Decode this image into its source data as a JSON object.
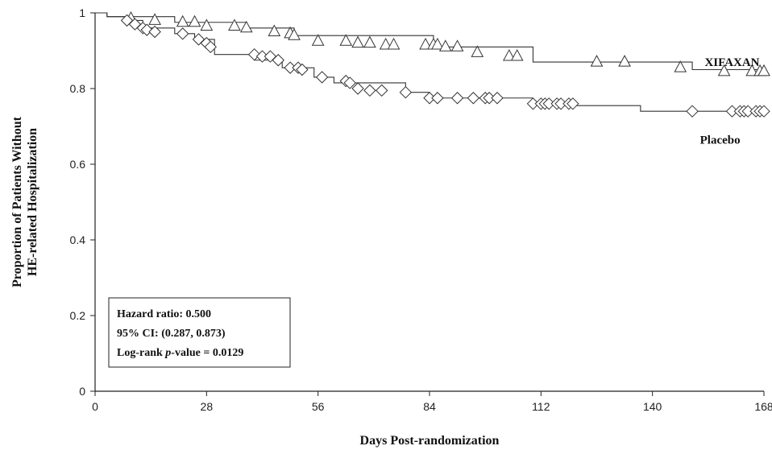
{
  "chart_data": {
    "type": "line",
    "subtype": "kaplan-meier-step",
    "xlabel": "Days Post-randomization",
    "ylabel_lines": [
      "Proportion of Patients Without",
      "HE-related Hospitalization"
    ],
    "xlim": [
      0,
      168
    ],
    "ylim": [
      0,
      1
    ],
    "xticks": [
      0,
      28,
      56,
      84,
      112,
      140,
      168
    ],
    "yticks": [
      0,
      0.2,
      0.4,
      0.6,
      0.8,
      1
    ],
    "ytick_labels": [
      "0",
      "0.2",
      "0.4",
      "0.6",
      "0.8",
      "1"
    ],
    "grid": false,
    "series": [
      {
        "name": "XIFAXAN",
        "color": "#333333",
        "marker": "triangle",
        "step_x": [
          0,
          3,
          20,
          38,
          50,
          85,
          110,
          150,
          168
        ],
        "step_y": [
          1.0,
          0.99,
          0.975,
          0.96,
          0.94,
          0.91,
          0.87,
          0.85,
          0.845
        ],
        "censored": [
          {
            "x": 9,
            "y": 0.985
          },
          {
            "x": 15,
            "y": 0.98
          },
          {
            "x": 22,
            "y": 0.975
          },
          {
            "x": 25,
            "y": 0.975
          },
          {
            "x": 28,
            "y": 0.965
          },
          {
            "x": 35,
            "y": 0.965
          },
          {
            "x": 38,
            "y": 0.96
          },
          {
            "x": 45,
            "y": 0.95
          },
          {
            "x": 49,
            "y": 0.945
          },
          {
            "x": 50,
            "y": 0.94
          },
          {
            "x": 56,
            "y": 0.925
          },
          {
            "x": 63,
            "y": 0.925
          },
          {
            "x": 66,
            "y": 0.92
          },
          {
            "x": 69,
            "y": 0.92
          },
          {
            "x": 73,
            "y": 0.915
          },
          {
            "x": 75,
            "y": 0.915
          },
          {
            "x": 83,
            "y": 0.915
          },
          {
            "x": 85,
            "y": 0.915
          },
          {
            "x": 86,
            "y": 0.915
          },
          {
            "x": 88,
            "y": 0.91
          },
          {
            "x": 91,
            "y": 0.91
          },
          {
            "x": 96,
            "y": 0.895
          },
          {
            "x": 104,
            "y": 0.885
          },
          {
            "x": 106,
            "y": 0.885
          },
          {
            "x": 126,
            "y": 0.87
          },
          {
            "x": 133,
            "y": 0.87
          },
          {
            "x": 147,
            "y": 0.855
          },
          {
            "x": 158,
            "y": 0.845
          },
          {
            "x": 165,
            "y": 0.845
          },
          {
            "x": 167,
            "y": 0.845
          },
          {
            "x": 168,
            "y": 0.845
          }
        ]
      },
      {
        "name": "Placebo",
        "color": "#333333",
        "marker": "diamond",
        "step_x": [
          0,
          3,
          8,
          12,
          20,
          25,
          30,
          40,
          47,
          55,
          60,
          78,
          84,
          102,
          110,
          120,
          137,
          168
        ],
        "step_y": [
          1.0,
          0.99,
          0.98,
          0.96,
          0.945,
          0.93,
          0.89,
          0.875,
          0.855,
          0.83,
          0.815,
          0.79,
          0.775,
          0.775,
          0.76,
          0.755,
          0.74,
          0.735
        ],
        "censored": [
          {
            "x": 8,
            "y": 0.98
          },
          {
            "x": 10,
            "y": 0.97
          },
          {
            "x": 12,
            "y": 0.96
          },
          {
            "x": 13,
            "y": 0.955
          },
          {
            "x": 15,
            "y": 0.95
          },
          {
            "x": 22,
            "y": 0.945
          },
          {
            "x": 26,
            "y": 0.93
          },
          {
            "x": 28,
            "y": 0.92
          },
          {
            "x": 29,
            "y": 0.91
          },
          {
            "x": 40,
            "y": 0.89
          },
          {
            "x": 42,
            "y": 0.885
          },
          {
            "x": 44,
            "y": 0.885
          },
          {
            "x": 46,
            "y": 0.875
          },
          {
            "x": 49,
            "y": 0.855
          },
          {
            "x": 51,
            "y": 0.855
          },
          {
            "x": 52,
            "y": 0.85
          },
          {
            "x": 57,
            "y": 0.83
          },
          {
            "x": 63,
            "y": 0.82
          },
          {
            "x": 64,
            "y": 0.815
          },
          {
            "x": 66,
            "y": 0.8
          },
          {
            "x": 69,
            "y": 0.795
          },
          {
            "x": 72,
            "y": 0.795
          },
          {
            "x": 78,
            "y": 0.79
          },
          {
            "x": 84,
            "y": 0.775
          },
          {
            "x": 86,
            "y": 0.775
          },
          {
            "x": 91,
            "y": 0.775
          },
          {
            "x": 95,
            "y": 0.775
          },
          {
            "x": 98,
            "y": 0.775
          },
          {
            "x": 99,
            "y": 0.775
          },
          {
            "x": 101,
            "y": 0.775
          },
          {
            "x": 110,
            "y": 0.76
          },
          {
            "x": 112,
            "y": 0.76
          },
          {
            "x": 113,
            "y": 0.76
          },
          {
            "x": 114,
            "y": 0.76
          },
          {
            "x": 116,
            "y": 0.76
          },
          {
            "x": 117,
            "y": 0.76
          },
          {
            "x": 119,
            "y": 0.76
          },
          {
            "x": 120,
            "y": 0.76
          },
          {
            "x": 150,
            "y": 0.74
          },
          {
            "x": 160,
            "y": 0.74
          },
          {
            "x": 162,
            "y": 0.74
          },
          {
            "x": 163,
            "y": 0.74
          },
          {
            "x": 164,
            "y": 0.74
          },
          {
            "x": 166,
            "y": 0.74
          },
          {
            "x": 167,
            "y": 0.74
          },
          {
            "x": 168,
            "y": 0.74
          }
        ]
      }
    ],
    "series_labels": [
      {
        "text": "XIFAXAN",
        "x": 160,
        "y": 0.87
      },
      {
        "text": "Placebo",
        "x": 157,
        "y": 0.665
      }
    ],
    "annotation_box": {
      "lines": [
        "Hazard ratio: 0.500",
        "95% CI: (0.287, 0.873)",
        "Log-rank p-value = 0.0129"
      ]
    }
  }
}
